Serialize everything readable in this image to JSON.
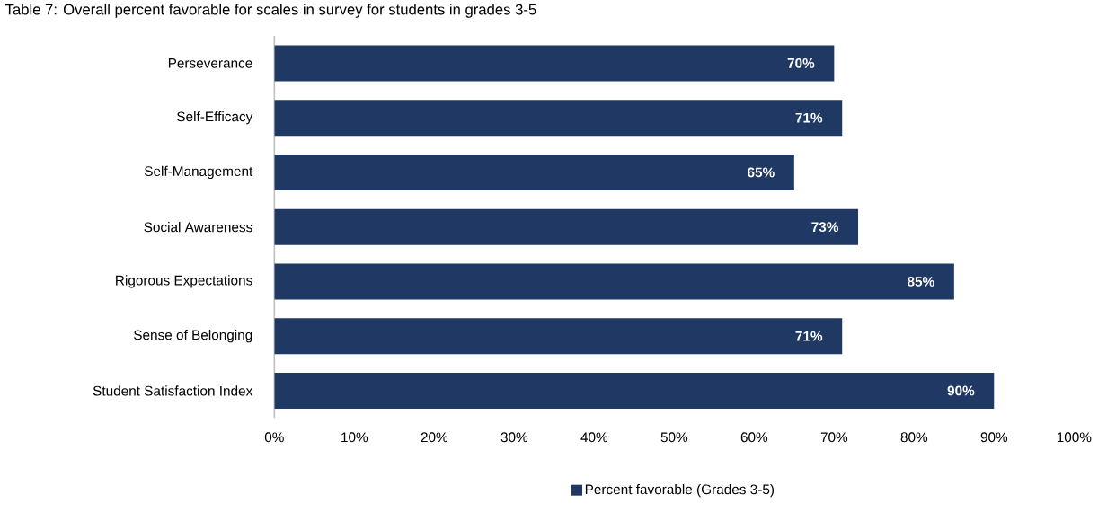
{
  "chart_data": {
    "type": "bar",
    "orientation": "horizontal",
    "title": "Table 7: Overall percent favorable for scales in survey for students in grades 3-5",
    "categories": [
      "Perseverance",
      "Self-Efficacy",
      "Self-Management",
      "Social Awareness",
      "Rigorous Expectations",
      "Sense of Belonging",
      "Student Satisfaction Index"
    ],
    "series": [
      {
        "name": "Percent favorable (Grades 3-5)",
        "color": "#203864",
        "values": [
          70,
          71,
          65,
          73,
          85,
          71,
          90
        ],
        "value_labels": [
          "70%",
          "71%",
          "65%",
          "73%",
          "85%",
          "71%",
          "90%"
        ]
      }
    ],
    "xlim": [
      0,
      100
    ],
    "xticks": [
      {
        "value": 0,
        "label": "0%"
      },
      {
        "value": 10,
        "label": "10%"
      },
      {
        "value": 20,
        "label": "20%"
      },
      {
        "value": 30,
        "label": "30%"
      },
      {
        "value": 40,
        "label": "40%"
      },
      {
        "value": 50,
        "label": "50%"
      },
      {
        "value": 60,
        "label": "60%"
      },
      {
        "value": 70,
        "label": "70%"
      },
      {
        "value": 80,
        "label": "80%"
      },
      {
        "value": 90,
        "label": "90%"
      },
      {
        "value": 100,
        "label": "100%"
      }
    ],
    "grid": false,
    "legend": "bottom"
  }
}
